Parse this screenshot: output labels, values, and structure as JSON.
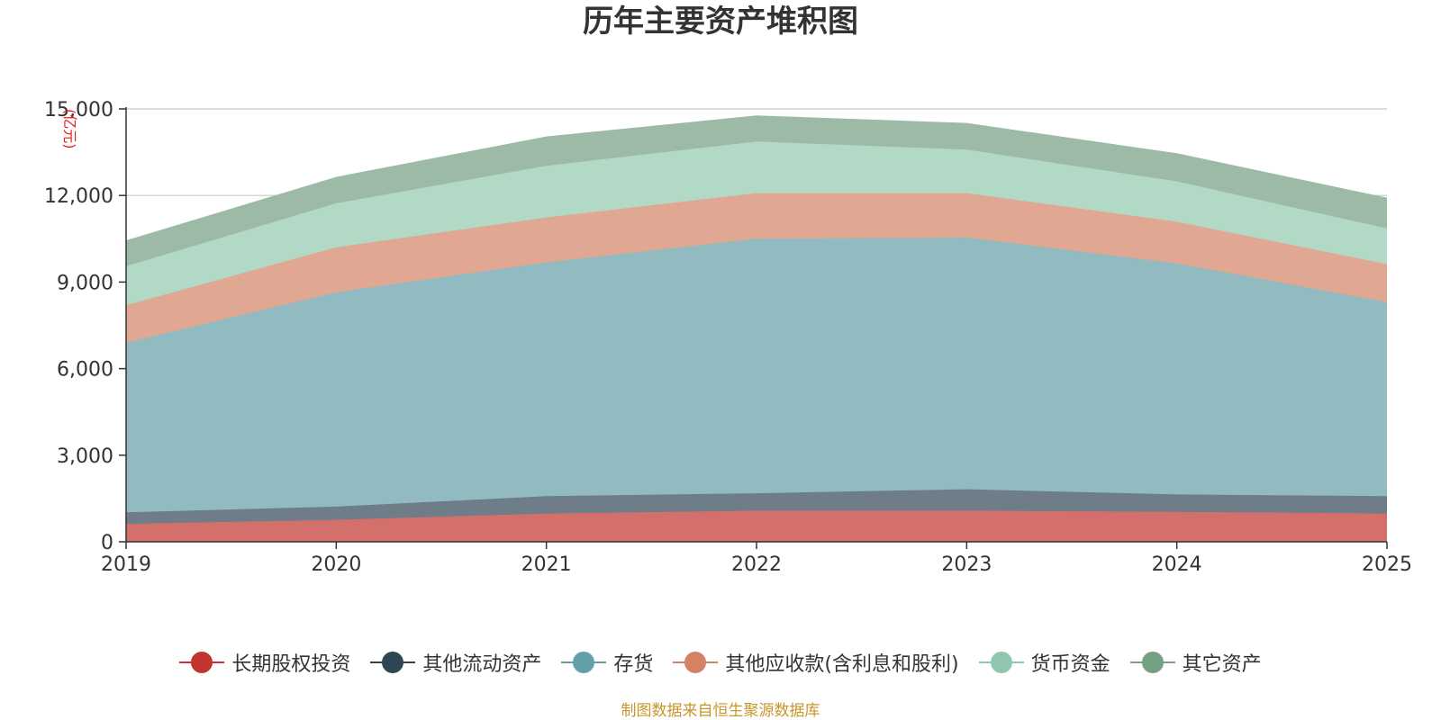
{
  "chart_data": {
    "type": "area",
    "stacked": true,
    "title": "历年主要资产堆积图",
    "unit": "亿元",
    "x": [
      "2019",
      "2020",
      "2021",
      "2022",
      "2023",
      "2024",
      "2025"
    ],
    "y_ticks": [
      "0",
      "3,000",
      "6,000",
      "9,000",
      "12,000",
      "15,000"
    ],
    "ylim": [
      0,
      15000
    ],
    "grid": true,
    "legend_position": "bottom",
    "series": [
      {
        "name": "长期股权投资",
        "color": "#c23531",
        "fill": "#d4706c",
        "values": [
          620,
          760,
          980,
          1080,
          1080,
          1040,
          980
        ]
      },
      {
        "name": "其他流动资产",
        "color": "#2f4554",
        "fill": "#6e7d88",
        "values": [
          400,
          460,
          600,
          600,
          740,
          600,
          600
        ]
      },
      {
        "name": "存货",
        "color": "#61a0a8",
        "fill": "#91bac1",
        "values": [
          5880,
          7420,
          8100,
          8820,
          8720,
          8010,
          6720
        ]
      },
      {
        "name": "其他应收款(含利息和股利)",
        "color": "#d48265",
        "fill": "#e0a792",
        "values": [
          1300,
          1560,
          1560,
          1580,
          1540,
          1440,
          1320
        ]
      },
      {
        "name": "货币资金",
        "color": "#91c7ae",
        "fill": "#b2d8c6",
        "values": [
          1350,
          1530,
          1790,
          1790,
          1510,
          1400,
          1240
        ]
      },
      {
        "name": "其它资产",
        "color": "#749f83",
        "fill": "#9dbaa6",
        "values": [
          870,
          890,
          990,
          880,
          900,
          950,
          1040
        ]
      }
    ]
  },
  "source_note": "制图数据来自恒生聚源数据库"
}
